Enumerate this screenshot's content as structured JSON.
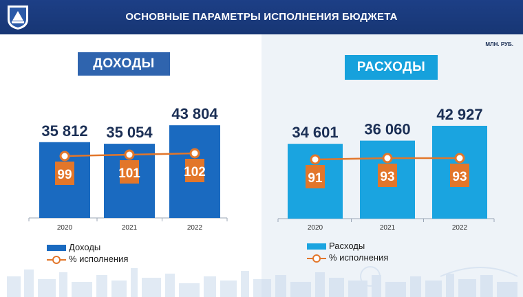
{
  "header": {
    "title": "ОСНОВНЫЕ ПАРАМЕТРЫ ИСПОЛНЕНИЯ БЮДЖЕТА"
  },
  "unit": "МЛН. РУБ.",
  "colors": {
    "income": "#1a6ac0",
    "expense": "#1aa4e0",
    "percent_line": "#e2762a",
    "value_text": "#1b2f55",
    "header": "#1d3f86"
  },
  "icons": {
    "emblem": "emblem-icon"
  },
  "chart_data": [
    {
      "type": "bar",
      "title": "ДОХОДЫ",
      "categories": [
        "2020",
        "2021",
        "2022"
      ],
      "series": [
        {
          "name": "Доходы",
          "values": [
            35812,
            35054,
            43804
          ]
        },
        {
          "name": "% исполнения",
          "type": "line",
          "values": [
            99,
            101,
            102
          ]
        }
      ],
      "value_labels": [
        "35 812",
        "35 054",
        "43 804"
      ],
      "percent_labels": [
        "99",
        "101",
        "102"
      ],
      "ylim": [
        0,
        50000
      ],
      "legend": "bottom-left"
    },
    {
      "type": "bar",
      "title": "РАСХОДЫ",
      "categories": [
        "2020",
        "2021",
        "2022"
      ],
      "series": [
        {
          "name": "Расходы",
          "values": [
            34601,
            36060,
            42927
          ]
        },
        {
          "name": "% исполнения",
          "type": "line",
          "values": [
            91,
            93,
            93
          ]
        }
      ],
      "value_labels": [
        "34 601",
        "36 060",
        "42 927"
      ],
      "percent_labels": [
        "91",
        "93",
        "93"
      ],
      "ylim": [
        0,
        50000
      ],
      "legend": "bottom-left"
    }
  ]
}
